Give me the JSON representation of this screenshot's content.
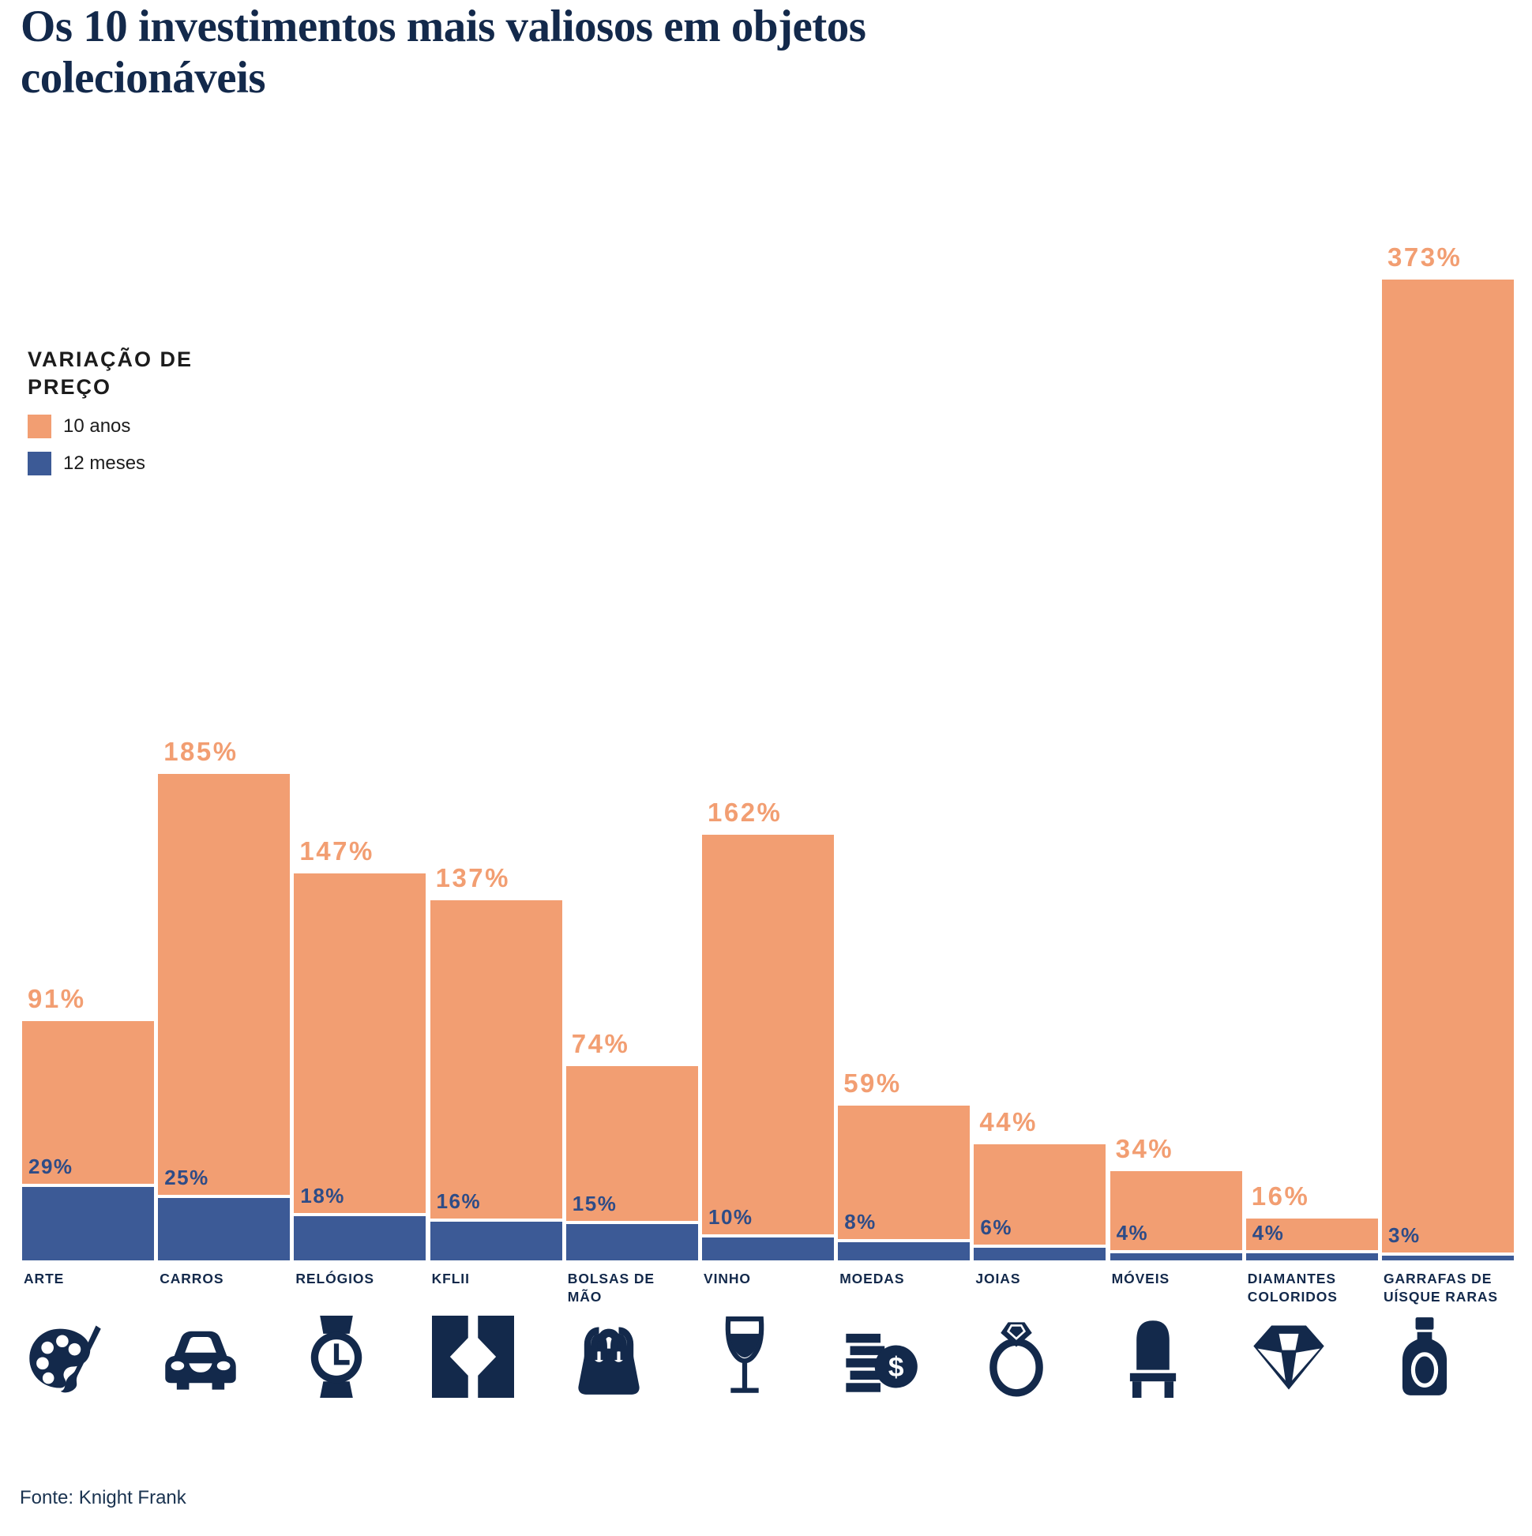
{
  "title": "Os 10 investimentos mais valiosos em objetos colecionáveis",
  "legend": {
    "title": "VARIAÇÃO DE PREÇO",
    "items": [
      {
        "label": "10 anos",
        "series": "10y"
      },
      {
        "label": "12 meses",
        "series": "12m"
      }
    ]
  },
  "source": "Fonte: Knight Frank",
  "colors": {
    "orange_10y": "#F29E72",
    "blue_12m": "#3C5A96",
    "blue_value_label": "#2E4C87",
    "navy_text": "#13294B",
    "legend_text": "#1C1C1C",
    "source_text": "#1A3350",
    "background": "#FFFFFF"
  },
  "chart_data": {
    "type": "bar",
    "title": "Os 10 investimentos mais valiosos em objetos colecionáveis",
    "legend_title": "VARIAÇÃO DE PREÇO",
    "legend_position": "upper-left",
    "grid": false,
    "value_suffix": "%",
    "ylim": [
      0,
      380
    ],
    "categories": [
      "ARTE",
      "CARROS",
      "RELÓGIOS",
      "KFLII",
      "BOLSAS DE MÃO",
      "VINHO",
      "MOEDAS",
      "JOIAS",
      "MÓVEIS",
      "DIAMANTES COLORIDOS",
      "GARRAFAS DE UÍSQUE RARAS"
    ],
    "icons": [
      "palette-icon",
      "car-icon",
      "watch-icon",
      "kflii-logo-icon",
      "handbag-icon",
      "wine-glass-icon",
      "coins-icon",
      "ring-icon",
      "chair-icon",
      "diamond-icon",
      "whisky-bottle-icon"
    ],
    "series": [
      {
        "name": "10 anos",
        "values": [
          91,
          185,
          147,
          137,
          74,
          162,
          59,
          44,
          34,
          16,
          373
        ]
      },
      {
        "name": "12 meses",
        "values": [
          29,
          25,
          18,
          16,
          15,
          10,
          8,
          6,
          4,
          4,
          3
        ]
      }
    ]
  }
}
